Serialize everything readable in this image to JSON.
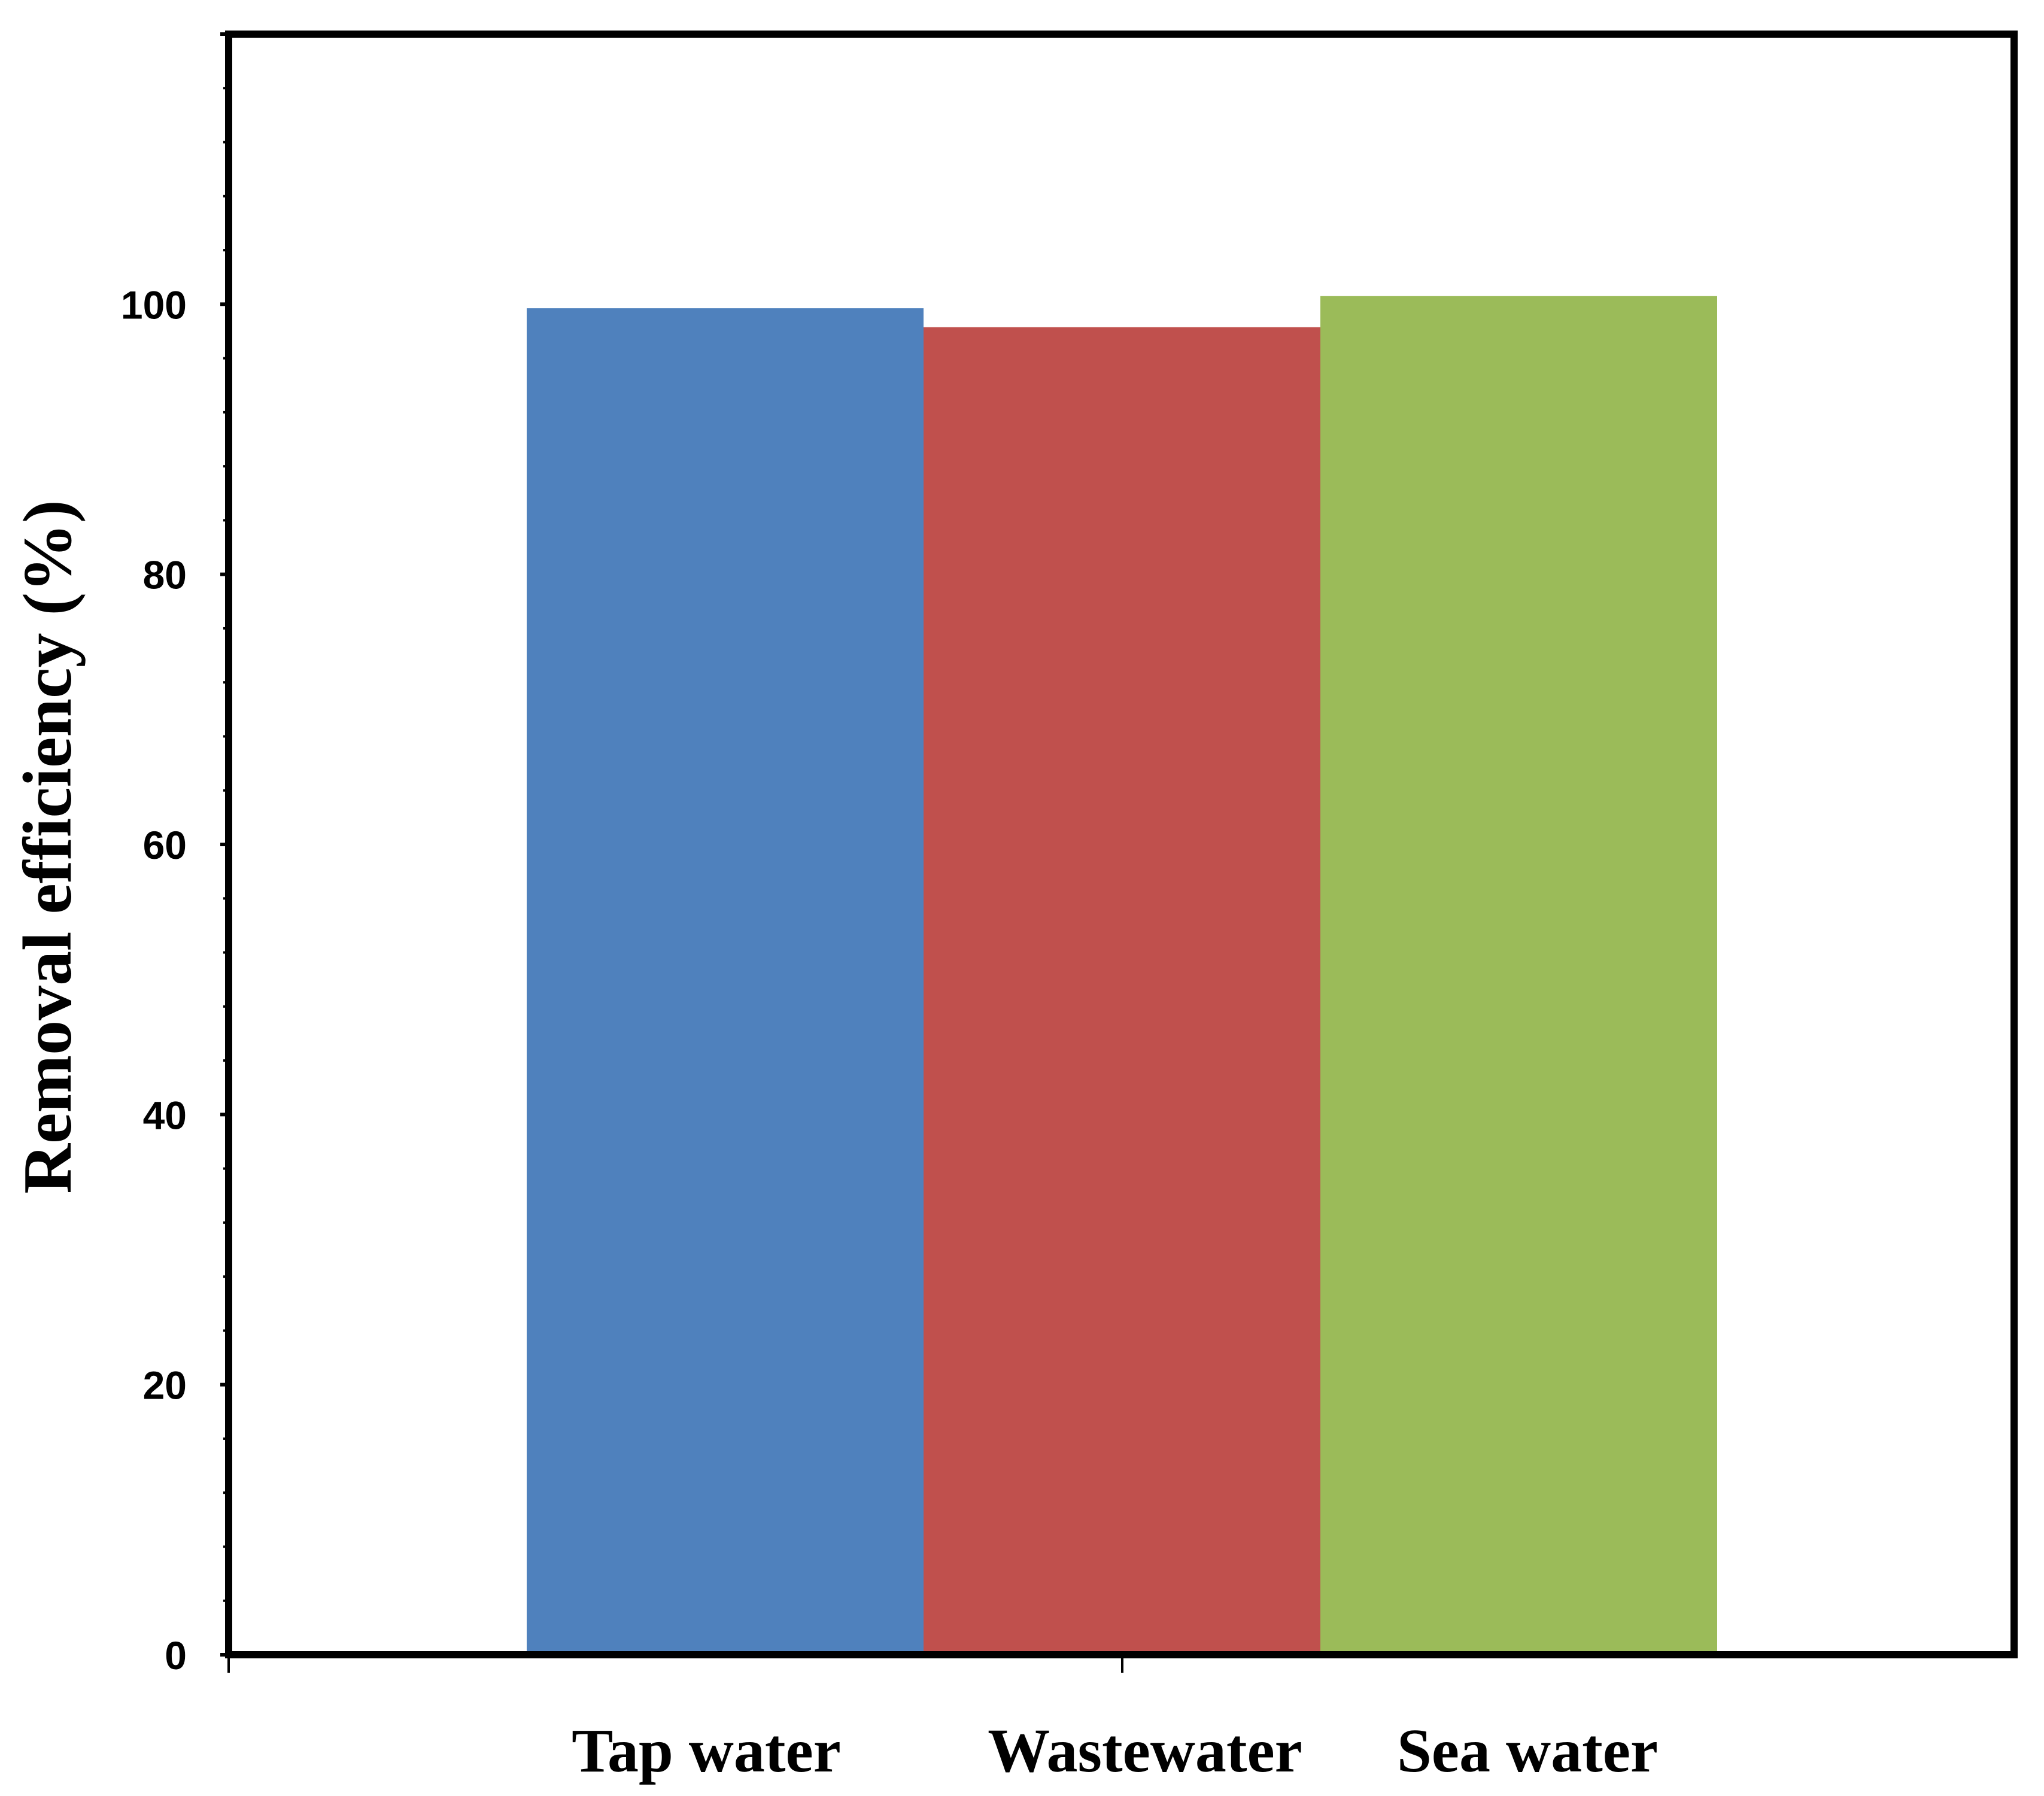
{
  "chart_data": {
    "type": "bar",
    "title": "",
    "xlabel": "",
    "ylabel": "Removal efficiency (%)",
    "categories": [
      "Tap water",
      "Wastewater",
      "Sea water"
    ],
    "values": [
      99.7,
      98.3,
      100.6
    ],
    "ylim": [
      0,
      120
    ],
    "yticks": [
      0,
      20,
      40,
      60,
      80,
      100
    ],
    "ytick_labels": [
      "0",
      "20",
      "40",
      "60",
      "80",
      "100"
    ],
    "grid": false,
    "legend": "none",
    "colors": [
      "#4f81bd",
      "#c0504d",
      "#9bbb59"
    ]
  }
}
